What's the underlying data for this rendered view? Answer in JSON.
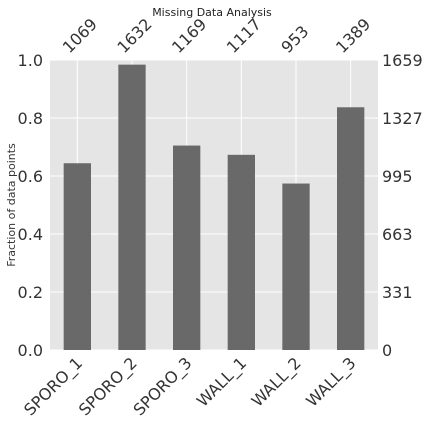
{
  "chart_data": {
    "type": "bar",
    "title": "Missing Data Analysis",
    "ylabel": "Fraction of data points",
    "categories": [
      "SPORO_1",
      "SPORO_2",
      "SPORO_3",
      "WALL_1",
      "WALL_2",
      "WALL_3"
    ],
    "values": [
      0.644,
      0.984,
      0.705,
      0.673,
      0.574,
      0.837
    ],
    "counts": [
      "1069",
      "1632",
      "1169",
      "1117",
      "953",
      "1389"
    ],
    "ylim": [
      0,
      1
    ],
    "left_ticks": [
      "0.0",
      "0.2",
      "0.4",
      "0.6",
      "0.8",
      "1.0"
    ],
    "right_ticks": [
      "0",
      "331",
      "663",
      "995",
      "1327",
      "1659"
    ],
    "grid": true,
    "colors": {
      "bar": "#696969",
      "plot_bg": "#e5e5e5",
      "grid": "#ffffff"
    }
  }
}
